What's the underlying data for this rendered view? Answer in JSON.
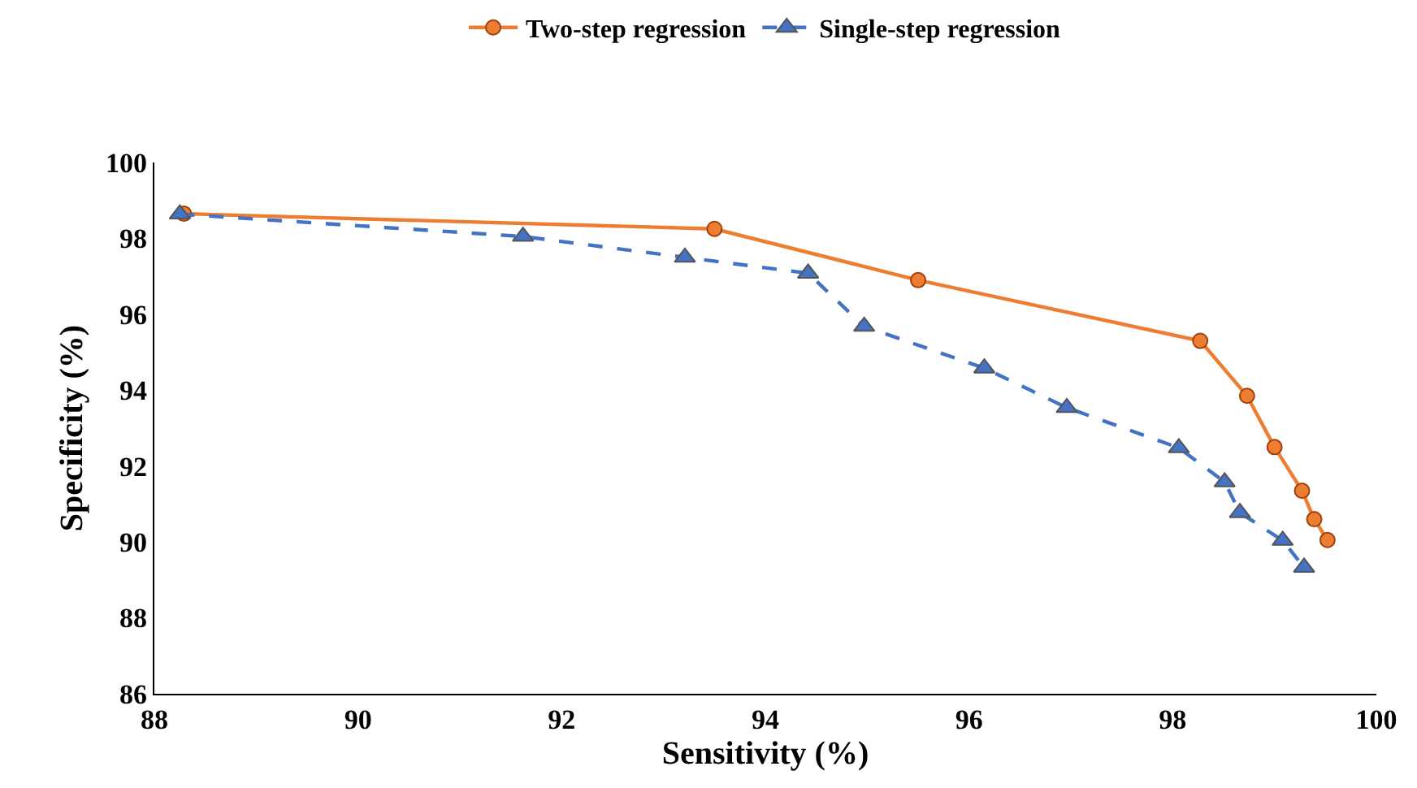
{
  "chart_data": {
    "type": "line",
    "xlabel": "Sensitivity (%)",
    "ylabel": "Specificity (%)",
    "xlim": [
      88,
      100
    ],
    "xticks": [
      88,
      90,
      92,
      94,
      96,
      98,
      100
    ],
    "ylim": [
      86,
      100
    ],
    "yticks": [
      86,
      88,
      90,
      92,
      94,
      96,
      98,
      100
    ],
    "legend": "top",
    "series": [
      {
        "name": "Two-step regression",
        "color": "#ed7d31",
        "marker": "circle",
        "line_style": "solid",
        "x": [
          88.29,
          93.5,
          95.5,
          98.27,
          98.73,
          99.0,
          99.27,
          99.39,
          99.52
        ],
        "values": [
          98.65,
          98.25,
          96.9,
          95.3,
          93.85,
          92.5,
          91.35,
          90.6,
          90.05
        ]
      },
      {
        "name": "Single-step regression",
        "color": "#4472c4",
        "marker": "triangle",
        "line_style": "dashed",
        "x": [
          88.25,
          91.62,
          93.21,
          94.42,
          94.97,
          96.15,
          96.96,
          98.06,
          98.51,
          98.66,
          99.08,
          99.29
        ],
        "values": [
          98.64,
          98.05,
          97.5,
          97.08,
          95.68,
          94.58,
          93.54,
          92.48,
          91.58,
          90.77,
          90.04,
          89.33
        ]
      }
    ]
  }
}
